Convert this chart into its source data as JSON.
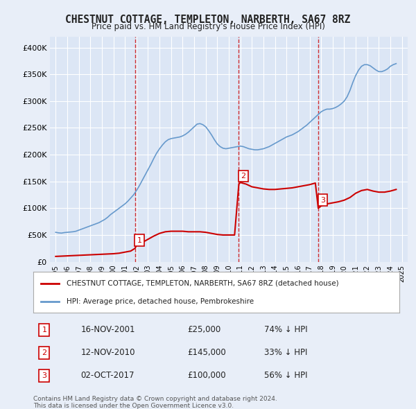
{
  "title": "CHESTNUT COTTAGE, TEMPLETON, NARBERTH, SA67 8RZ",
  "subtitle": "Price paid vs. HM Land Registry's House Price Index (HPI)",
  "legend_property": "CHESTNUT COTTAGE, TEMPLETON, NARBERTH, SA67 8RZ (detached house)",
  "legend_hpi": "HPI: Average price, detached house, Pembrokeshire",
  "footer1": "Contains HM Land Registry data © Crown copyright and database right 2024.",
  "footer2": "This data is licensed under the Open Government Licence v3.0.",
  "transactions": [
    {
      "num": 1,
      "date": "16-NOV-2001",
      "price": 25000,
      "pct": "74%",
      "dir": "↓",
      "x": 2001.87
    },
    {
      "num": 2,
      "date": "12-NOV-2010",
      "price": 145000,
      "pct": "33%",
      "dir": "↓",
      "x": 2010.87
    },
    {
      "num": 3,
      "date": "02-OCT-2017",
      "price": 100000,
      "pct": "56%",
      "dir": "↓",
      "x": 2017.75
    }
  ],
  "hpi_line": {
    "x": [
      1995.0,
      1995.25,
      1995.5,
      1995.75,
      1996.0,
      1996.25,
      1996.5,
      1996.75,
      1997.0,
      1997.25,
      1997.5,
      1997.75,
      1998.0,
      1998.25,
      1998.5,
      1998.75,
      1999.0,
      1999.25,
      1999.5,
      1999.75,
      2000.0,
      2000.25,
      2000.5,
      2000.75,
      2001.0,
      2001.25,
      2001.5,
      2001.75,
      2002.0,
      2002.25,
      2002.5,
      2002.75,
      2003.0,
      2003.25,
      2003.5,
      2003.75,
      2004.0,
      2004.25,
      2004.5,
      2004.75,
      2005.0,
      2005.25,
      2005.5,
      2005.75,
      2006.0,
      2006.25,
      2006.5,
      2006.75,
      2007.0,
      2007.25,
      2007.5,
      2007.75,
      2008.0,
      2008.25,
      2008.5,
      2008.75,
      2009.0,
      2009.25,
      2009.5,
      2009.75,
      2010.0,
      2010.25,
      2010.5,
      2010.75,
      2011.0,
      2011.25,
      2011.5,
      2011.75,
      2012.0,
      2012.25,
      2012.5,
      2012.75,
      2013.0,
      2013.25,
      2013.5,
      2013.75,
      2014.0,
      2014.25,
      2014.5,
      2014.75,
      2015.0,
      2015.25,
      2015.5,
      2015.75,
      2016.0,
      2016.25,
      2016.5,
      2016.75,
      2017.0,
      2017.25,
      2017.5,
      2017.75,
      2018.0,
      2018.25,
      2018.5,
      2018.75,
      2019.0,
      2019.25,
      2019.5,
      2019.75,
      2020.0,
      2020.25,
      2020.5,
      2020.75,
      2021.0,
      2021.25,
      2021.5,
      2021.75,
      2022.0,
      2022.25,
      2022.5,
      2022.75,
      2023.0,
      2023.25,
      2023.5,
      2023.75,
      2024.0,
      2024.25,
      2024.5
    ],
    "y": [
      55000,
      54000,
      53500,
      54500,
      55000,
      55500,
      56000,
      57000,
      59000,
      61000,
      63000,
      65000,
      67000,
      69000,
      71000,
      73000,
      76000,
      79000,
      83000,
      88000,
      92000,
      96000,
      100000,
      104000,
      108000,
      113000,
      119000,
      125000,
      133000,
      142000,
      152000,
      162000,
      172000,
      182000,
      193000,
      203000,
      211000,
      218000,
      224000,
      228000,
      230000,
      231000,
      232000,
      233000,
      235000,
      238000,
      242000,
      247000,
      252000,
      257000,
      258000,
      256000,
      252000,
      245000,
      237000,
      228000,
      220000,
      215000,
      212000,
      211000,
      212000,
      213000,
      214000,
      215000,
      216000,
      215000,
      213000,
      211000,
      210000,
      209000,
      209000,
      210000,
      211000,
      213000,
      215000,
      218000,
      221000,
      224000,
      227000,
      230000,
      233000,
      235000,
      237000,
      240000,
      243000,
      247000,
      251000,
      255000,
      260000,
      265000,
      270000,
      275000,
      280000,
      283000,
      285000,
      285000,
      286000,
      288000,
      291000,
      295000,
      300000,
      308000,
      320000,
      335000,
      348000,
      358000,
      365000,
      368000,
      368000,
      366000,
      362000,
      358000,
      355000,
      355000,
      357000,
      360000,
      365000,
      368000,
      370000
    ]
  },
  "price_line": {
    "x": [
      1995.0,
      1995.5,
      1996.0,
      1996.5,
      1997.0,
      1997.5,
      1998.0,
      1998.5,
      1999.0,
      1999.5,
      2000.0,
      2000.5,
      2001.0,
      2001.5,
      2001.87,
      2001.87,
      2002.0,
      2002.5,
      2003.0,
      2003.5,
      2004.0,
      2004.5,
      2005.0,
      2005.5,
      2006.0,
      2006.5,
      2007.0,
      2007.5,
      2008.0,
      2008.5,
      2009.0,
      2009.5,
      2010.0,
      2010.5,
      2010.87,
      2010.87,
      2011.0,
      2011.5,
      2012.0,
      2012.5,
      2013.0,
      2013.5,
      2014.0,
      2014.5,
      2015.0,
      2015.5,
      2016.0,
      2016.5,
      2017.0,
      2017.5,
      2017.75,
      2017.75,
      2018.0,
      2018.5,
      2019.0,
      2019.5,
      2020.0,
      2020.5,
      2021.0,
      2021.5,
      2022.0,
      2022.5,
      2023.0,
      2023.5,
      2024.0,
      2024.5
    ],
    "y": [
      10000,
      10500,
      11000,
      11500,
      12000,
      12500,
      13000,
      13500,
      14000,
      14500,
      15000,
      16000,
      18000,
      20000,
      25000,
      25000,
      30000,
      36000,
      42000,
      48000,
      53000,
      56000,
      57000,
      57000,
      57000,
      56000,
      56000,
      56000,
      55000,
      53000,
      51000,
      50000,
      50000,
      50000,
      145000,
      145000,
      148000,
      145000,
      140000,
      138000,
      136000,
      135000,
      135000,
      136000,
      137000,
      138000,
      140000,
      142000,
      144000,
      147000,
      100000,
      100000,
      104000,
      108000,
      110000,
      112000,
      115000,
      120000,
      128000,
      133000,
      135000,
      132000,
      130000,
      130000,
      132000,
      135000
    ]
  },
  "xlim": [
    1994.5,
    2025.5
  ],
  "ylim": [
    0,
    420000
  ],
  "yticks": [
    0,
    50000,
    100000,
    150000,
    200000,
    250000,
    300000,
    350000,
    400000
  ],
  "ytick_labels": [
    "£0",
    "£50K",
    "£100K",
    "£150K",
    "£200K",
    "£250K",
    "£300K",
    "£350K",
    "£400K"
  ],
  "xticks": [
    1995,
    1996,
    1997,
    1998,
    1999,
    2000,
    2001,
    2002,
    2003,
    2004,
    2005,
    2006,
    2007,
    2008,
    2009,
    2010,
    2011,
    2012,
    2013,
    2014,
    2015,
    2016,
    2017,
    2018,
    2019,
    2020,
    2021,
    2022,
    2023,
    2024,
    2025
  ],
  "background_color": "#e8eef8",
  "plot_bg_color": "#dce6f5",
  "grid_color": "#ffffff",
  "red_line_color": "#cc0000",
  "blue_line_color": "#6699cc",
  "vline_color": "#cc0000",
  "marker_label_bg": "#ffffff",
  "marker_label_border": "#cc0000"
}
